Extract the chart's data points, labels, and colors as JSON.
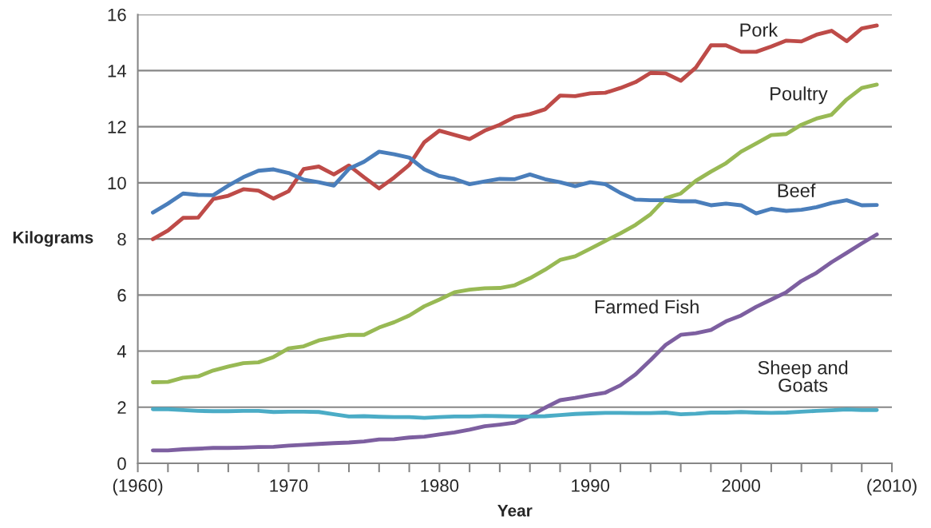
{
  "chart_data": {
    "type": "line",
    "xlabel": "Year",
    "ylabel": "Kilograms",
    "x": [
      1961,
      1962,
      1963,
      1964,
      1965,
      1966,
      1967,
      1968,
      1969,
      1970,
      1971,
      1972,
      1973,
      1974,
      1975,
      1976,
      1977,
      1978,
      1979,
      1980,
      1981,
      1982,
      1983,
      1984,
      1985,
      1986,
      1987,
      1988,
      1989,
      1990,
      1991,
      1992,
      1993,
      1994,
      1995,
      1996,
      1997,
      1998,
      1999,
      2000,
      2001,
      2002,
      2003,
      2004,
      2005,
      2006,
      2007,
      2008,
      2009
    ],
    "series": [
      {
        "name": "Pork",
        "color": "#be4b48",
        "values": [
          7.99,
          8.3,
          8.75,
          8.76,
          9.42,
          9.54,
          9.77,
          9.72,
          9.44,
          9.7,
          10.49,
          10.58,
          10.3,
          10.62,
          10.2,
          9.8,
          10.19,
          10.64,
          11.45,
          11.86,
          11.71,
          11.56,
          11.86,
          12.07,
          12.35,
          12.45,
          12.62,
          13.11,
          13.09,
          13.19,
          13.21,
          13.38,
          13.59,
          13.92,
          13.9,
          13.64,
          14.11,
          14.9,
          14.9,
          14.67,
          14.67,
          14.86,
          15.07,
          15.04,
          15.28,
          15.42,
          15.05,
          15.5,
          15.61
        ]
      },
      {
        "name": "Poultry",
        "color": "#98b954",
        "values": [
          2.89,
          2.9,
          3.05,
          3.1,
          3.31,
          3.45,
          3.57,
          3.6,
          3.79,
          4.1,
          4.17,
          4.38,
          4.49,
          4.58,
          4.58,
          4.84,
          5.03,
          5.27,
          5.6,
          5.84,
          6.1,
          6.19,
          6.24,
          6.25,
          6.35,
          6.6,
          6.9,
          7.25,
          7.38,
          7.65,
          7.93,
          8.2,
          8.5,
          8.88,
          9.45,
          9.62,
          10.07,
          10.4,
          10.7,
          11.11,
          11.4,
          11.7,
          11.74,
          12.07,
          12.29,
          12.43,
          12.97,
          13.38,
          13.5
        ]
      },
      {
        "name": "Beef",
        "color": "#4a7ebb",
        "values": [
          8.94,
          9.26,
          9.62,
          9.57,
          9.56,
          9.9,
          10.2,
          10.43,
          10.48,
          10.35,
          10.11,
          10.02,
          9.9,
          10.5,
          10.75,
          11.11,
          11.02,
          10.9,
          10.48,
          10.24,
          10.14,
          9.95,
          10.05,
          10.14,
          10.13,
          10.3,
          10.13,
          10.02,
          9.88,
          10.02,
          9.95,
          9.64,
          9.4,
          9.38,
          9.38,
          9.34,
          9.34,
          9.2,
          9.26,
          9.2,
          8.91,
          9.07,
          9.0,
          9.04,
          9.13,
          9.28,
          9.38,
          9.2,
          9.21
        ]
      },
      {
        "name": "Farmed Fish",
        "color": "#7d5fa0",
        "values": [
          0.46,
          0.46,
          0.5,
          0.52,
          0.55,
          0.55,
          0.56,
          0.58,
          0.59,
          0.63,
          0.66,
          0.69,
          0.72,
          0.74,
          0.78,
          0.85,
          0.86,
          0.92,
          0.95,
          1.03,
          1.1,
          1.2,
          1.32,
          1.38,
          1.45,
          1.68,
          1.98,
          2.25,
          2.33,
          2.43,
          2.52,
          2.78,
          3.17,
          3.68,
          4.22,
          4.58,
          4.64,
          4.75,
          5.06,
          5.27,
          5.58,
          5.84,
          6.1,
          6.5,
          6.79,
          7.17,
          7.5,
          7.84,
          8.16
        ]
      },
      {
        "name": "Sheep and\nGoats",
        "color": "#4bacc6",
        "values": [
          1.93,
          1.93,
          1.9,
          1.87,
          1.86,
          1.86,
          1.87,
          1.87,
          1.83,
          1.84,
          1.84,
          1.83,
          1.75,
          1.67,
          1.68,
          1.66,
          1.65,
          1.65,
          1.62,
          1.65,
          1.67,
          1.67,
          1.69,
          1.68,
          1.67,
          1.67,
          1.68,
          1.72,
          1.76,
          1.78,
          1.8,
          1.8,
          1.79,
          1.79,
          1.81,
          1.75,
          1.77,
          1.81,
          1.81,
          1.83,
          1.81,
          1.8,
          1.81,
          1.84,
          1.87,
          1.89,
          1.92,
          1.9,
          1.9
        ]
      }
    ],
    "xlim": [
      1960,
      2010
    ],
    "xticks": [
      {
        "value": 1960,
        "label": "(1960)"
      },
      {
        "value": 1962,
        "label": null
      },
      {
        "value": 1964,
        "label": null
      },
      {
        "value": 1966,
        "label": null
      },
      {
        "value": 1968,
        "label": null
      },
      {
        "value": 1970,
        "label": "1970"
      },
      {
        "value": 1972,
        "label": null
      },
      {
        "value": 1974,
        "label": null
      },
      {
        "value": 1976,
        "label": null
      },
      {
        "value": 1978,
        "label": null
      },
      {
        "value": 1980,
        "label": "1980"
      },
      {
        "value": 1982,
        "label": null
      },
      {
        "value": 1984,
        "label": null
      },
      {
        "value": 1986,
        "label": null
      },
      {
        "value": 1988,
        "label": null
      },
      {
        "value": 1990,
        "label": "1990"
      },
      {
        "value": 1992,
        "label": null
      },
      {
        "value": 1994,
        "label": null
      },
      {
        "value": 1996,
        "label": null
      },
      {
        "value": 1998,
        "label": null
      },
      {
        "value": 2000,
        "label": "2000"
      },
      {
        "value": 2002,
        "label": null
      },
      {
        "value": 2004,
        "label": null
      },
      {
        "value": 2006,
        "label": null
      },
      {
        "value": 2008,
        "label": null
      },
      {
        "value": 2010,
        "label": "(2010)"
      }
    ],
    "ylim": [
      0,
      16
    ],
    "yticks": [
      0,
      2,
      4,
      6,
      8,
      10,
      12,
      14,
      16
    ],
    "grid": "y",
    "legend": false,
    "marker": "none",
    "line_style": "solid"
  }
}
